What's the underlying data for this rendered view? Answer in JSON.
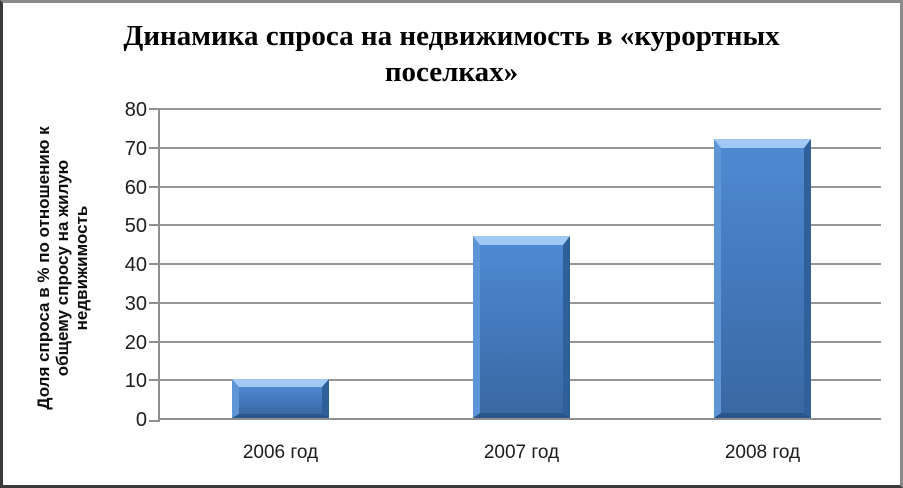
{
  "header": {
    "title_lines": [
      "Динамика спроса на недвижимость в «курортных",
      "поселках»"
    ]
  },
  "axes": {
    "y_title_lines": [
      "Доля спроса в % по отношению к",
      "общему спросу на жилую",
      "недвижимость"
    ],
    "y_ticks": [
      0,
      10,
      20,
      30,
      40,
      50,
      60,
      70,
      80
    ],
    "x_labels": [
      "2006 год",
      "2007 год",
      "2008 год"
    ]
  },
  "chart_data": {
    "type": "bar",
    "title": "Динамика спроса на недвижимость в «курортных поселках»",
    "categories": [
      "2006 год",
      "2007 год",
      "2008 год"
    ],
    "values": [
      10,
      47,
      72
    ],
    "xlabel": "",
    "ylabel": "Доля спроса в % по отношению к общему спросу на жилую недвижимость",
    "ylim": [
      0,
      80
    ],
    "ytick_step": 10,
    "grid": true,
    "legend": false
  },
  "colors": {
    "bar_fill": "#4478bc",
    "bar_bevel_light": "#a2c9f3",
    "bar_bevel_dark": "#2b5689",
    "gridline": "#969696",
    "axis_line": "#8f8f8f",
    "text": "#1c1c1c",
    "background": "#ffffff"
  }
}
